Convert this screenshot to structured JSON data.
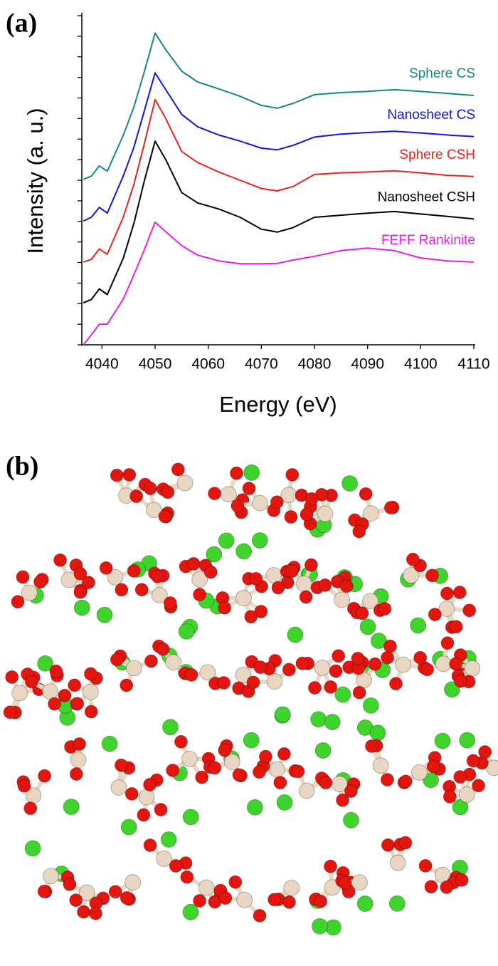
{
  "chart_data": {
    "type": "line",
    "panel_label": "(a)",
    "xlabel": "Energy (eV)",
    "ylabel": "Intensity (a. u.)",
    "x": [
      4036.5,
      4038,
      4039.5,
      4041,
      4044,
      4046,
      4048,
      4050,
      4052,
      4055,
      4058,
      4062,
      4066,
      4070,
      4073,
      4076,
      4080,
      4085,
      4090,
      4095,
      4100,
      4105,
      4110
    ],
    "xlim": [
      4036.2,
      4110
    ],
    "xticks": [
      4040,
      4050,
      4060,
      4070,
      4080,
      4090,
      4100,
      4110
    ],
    "ylim": [
      0,
      8
    ],
    "yticks": [
      0,
      0.5,
      1,
      1.5,
      2,
      2.5,
      3,
      3.5,
      4,
      4.5,
      5,
      5.5,
      6,
      6.5,
      7,
      7.5,
      8
    ],
    "series": [
      {
        "name": "Sphere CS",
        "color": "#17868a",
        "values": [
          4.02,
          4.1,
          4.35,
          4.22,
          5.09,
          5.78,
          6.65,
          7.58,
          7.17,
          6.65,
          6.39,
          6.22,
          6.04,
          5.82,
          5.75,
          5.87,
          6.08,
          6.13,
          6.16,
          6.2,
          6.16,
          6.11,
          6.06
        ]
      },
      {
        "name": "Nanosheet CS",
        "color": "#1414e0",
        "values": [
          3.01,
          3.1,
          3.34,
          3.2,
          4.1,
          4.8,
          5.7,
          6.61,
          6.2,
          5.6,
          5.3,
          5.1,
          4.95,
          4.78,
          4.74,
          4.85,
          5.05,
          5.12,
          5.16,
          5.19,
          5.15,
          5.1,
          5.06
        ]
      },
      {
        "name": "Sphere CSH",
        "color": "#e8231c",
        "values": [
          2.01,
          2.08,
          2.33,
          2.2,
          3.1,
          3.9,
          4.9,
          5.96,
          5.5,
          4.7,
          4.43,
          4.2,
          4.0,
          3.8,
          3.74,
          3.85,
          4.14,
          4.18,
          4.2,
          4.23,
          4.18,
          4.12,
          4.09
        ]
      },
      {
        "name": "Nanosheet CSH",
        "color": "#000000",
        "values": [
          1.02,
          1.1,
          1.36,
          1.22,
          2.1,
          2.95,
          4.0,
          4.95,
          4.5,
          3.7,
          3.45,
          3.3,
          3.1,
          2.81,
          2.74,
          2.85,
          3.1,
          3.15,
          3.2,
          3.24,
          3.18,
          3.12,
          3.06
        ]
      },
      {
        "name": "FEFF Rankinite",
        "color": "#e61ee6",
        "values": [
          0,
          0.24,
          0.5,
          0.5,
          1.11,
          1.7,
          2.32,
          2.98,
          2.75,
          2.41,
          2.18,
          2.04,
          1.97,
          1.97,
          1.98,
          2.06,
          2.15,
          2.29,
          2.35,
          2.29,
          2.11,
          2.04,
          2.01
        ]
      }
    ]
  },
  "figure_b": {
    "panel_label": "(b)"
  }
}
